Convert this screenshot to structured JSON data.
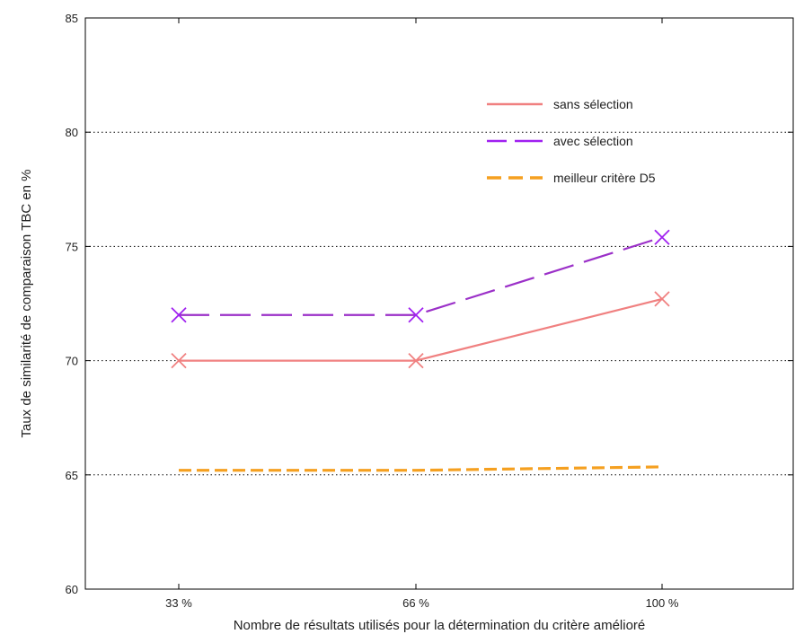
{
  "chart_data": {
    "type": "line",
    "title": "",
    "xlabel": "Nombre de résultats utilisés pour la détermination du critère amélioré",
    "ylabel": "Taux de similarité de comparaison TBC en %",
    "categories": [
      "33 %",
      "66 %",
      "100 %"
    ],
    "ylim": [
      60,
      85
    ],
    "yticks": [
      60,
      65,
      70,
      75,
      80,
      85
    ],
    "grid": "horizontal dotted at 65, 70, 75, 80",
    "legend_position": "top-right",
    "series": [
      {
        "name": "sans sélection",
        "values": [
          70,
          70,
          72.7
        ],
        "color": "#f08080",
        "dash": "solid",
        "marker": "x"
      },
      {
        "name": "avec sélection",
        "values": [
          72,
          72,
          75.4
        ],
        "color": "#9b30c8",
        "marker_color": "#a020f0",
        "dash": "dashed",
        "marker": "x"
      },
      {
        "name": "meilleur critère D5",
        "values": [
          65.2,
          65.2,
          65.35
        ],
        "color": "#f5a020",
        "dash": "dashed",
        "marker": "none"
      }
    ]
  }
}
